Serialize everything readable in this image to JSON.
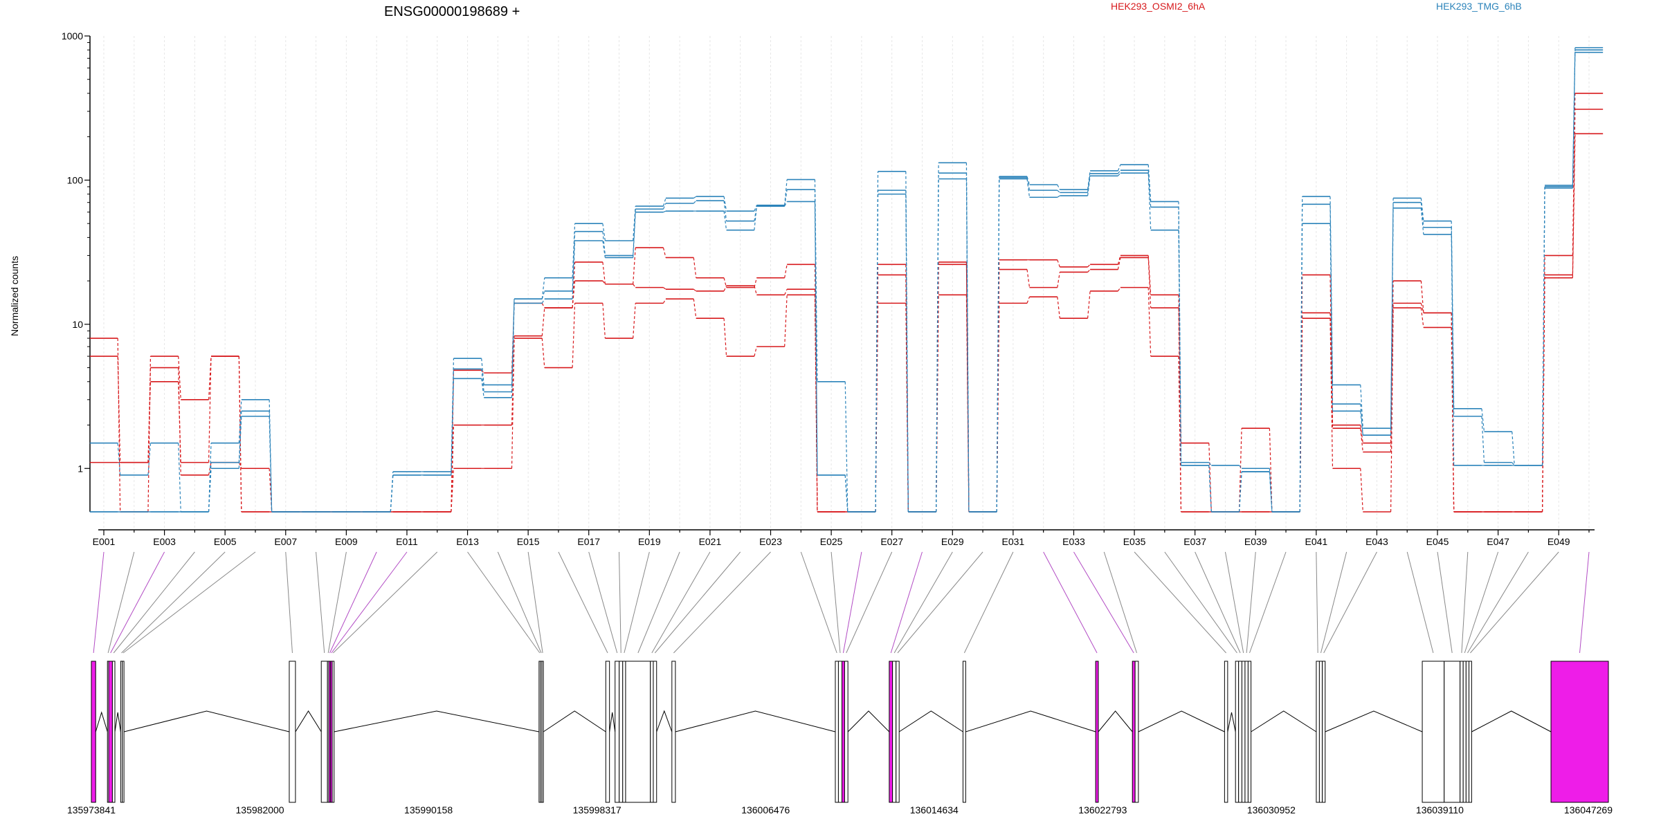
{
  "chart_data": {
    "type": "line",
    "title": "ENSG00000198689 +",
    "ylabel": "Normalized counts",
    "xlabel": "",
    "yscale": "log",
    "ylim": [
      0.5,
      1000
    ],
    "y_ticks": [
      1,
      10,
      100,
      1000
    ],
    "y_tick_labels": [
      "1",
      "10",
      "100",
      "1000"
    ],
    "grid": "vertical dotted",
    "legend_placement": "top",
    "colors": {
      "red": "#d7191c",
      "blue": "#2b83ba",
      "exon_highlight": "#ee1de8"
    },
    "legend": [
      {
        "label": "HEK293_OSMI2_6hA",
        "color": "#d7191c"
      },
      {
        "label": "HEK293_TMG_6hB",
        "color": "#2b83ba"
      }
    ],
    "exons": [
      "E001",
      "E002",
      "E003",
      "E004",
      "E005",
      "E006",
      "E007",
      "E008",
      "E009",
      "E010",
      "E011",
      "E012",
      "E013",
      "E014",
      "E015",
      "E016",
      "E017",
      "E018",
      "E019",
      "E020",
      "E021",
      "E022",
      "E023",
      "E024",
      "E025",
      "E026",
      "E027",
      "E028",
      "E029",
      "E030",
      "E031",
      "E032",
      "E033",
      "E034",
      "E035",
      "E036",
      "E037",
      "E038",
      "E039",
      "E040",
      "E041",
      "E042",
      "E043",
      "E044",
      "E045",
      "E046",
      "E047",
      "E048",
      "E049",
      "E050"
    ],
    "exon_tick_labels": [
      "E001",
      "E003",
      "E005",
      "E007",
      "E009",
      "E011",
      "E013",
      "E015",
      "E017",
      "E019",
      "E021",
      "E023",
      "E025",
      "E027",
      "E029",
      "E031",
      "E033",
      "E035",
      "E037",
      "E039",
      "E041",
      "E043",
      "E045",
      "E047",
      "E049"
    ],
    "series": [
      {
        "name": "HEK293_OSMI2_6hA",
        "color": "#d7191c",
        "values": [
          8,
          0.5,
          6,
          3,
          6,
          0.5,
          0.5,
          0.5,
          0.5,
          0.5,
          0.5,
          0.5,
          4.8,
          4.6,
          14,
          13,
          27,
          19,
          34,
          29,
          21,
          18,
          21,
          26,
          0.5,
          0.5,
          26,
          0.5,
          27,
          0.5,
          28,
          28,
          25,
          26,
          30,
          16,
          1.5,
          0.5,
          1.9,
          0.5,
          22,
          2,
          1.5,
          14,
          12,
          0.5,
          0.5,
          0.5,
          30,
          400
        ]
      },
      {
        "name": "HEK293_OSMI2_6hA",
        "color": "#d7191c",
        "values": [
          6,
          1.1,
          5,
          0.9,
          1.1,
          1,
          0.5,
          0.5,
          0.5,
          0.5,
          0.5,
          0.5,
          2,
          2,
          8.3,
          13,
          20,
          19,
          18,
          17.5,
          17,
          18.5,
          16,
          17.5,
          0.5,
          0.5,
          22,
          0.5,
          26,
          0.5,
          24,
          18,
          23,
          24,
          29,
          13,
          0.5,
          0.5,
          0.5,
          0.5,
          12,
          1.9,
          1.3,
          20,
          12,
          0.5,
          0.5,
          0.5,
          22,
          310
        ]
      },
      {
        "name": "HEK293_OSMI2_6hA",
        "color": "#d7191c",
        "values": [
          1.1,
          1.1,
          4,
          1.1,
          6,
          0.5,
          0.5,
          0.5,
          0.5,
          0.5,
          0.5,
          0.5,
          1,
          1,
          8,
          5,
          14,
          8,
          14,
          15,
          11,
          6,
          7,
          16,
          0.5,
          0.5,
          14,
          0.5,
          16,
          0.5,
          14,
          15.5,
          11,
          17,
          18,
          6,
          0.5,
          0.5,
          0.5,
          0.5,
          11,
          1,
          0.5,
          13,
          9.5,
          0.5,
          0.5,
          0.5,
          21,
          210
        ]
      },
      {
        "name": "HEK293_TMG_6hB",
        "color": "#2b83ba",
        "values": [
          1.5,
          0.9,
          1.5,
          0.5,
          1.5,
          3,
          0.5,
          0.5,
          0.5,
          0.5,
          0.95,
          0.95,
          5.8,
          3.8,
          15,
          21,
          50,
          38,
          66,
          75,
          77,
          61,
          67,
          101,
          4,
          0.5,
          115,
          0.5,
          132,
          0.5,
          106,
          93,
          86,
          116,
          128,
          71,
          1.1,
          1.05,
          1,
          0.5,
          77,
          3.8,
          1.9,
          75,
          52,
          2.6,
          1.8,
          1.05,
          92,
          830
        ]
      },
      {
        "name": "HEK293_TMG_6hB",
        "color": "#2b83ba",
        "values": [
          0.5,
          0.5,
          0.5,
          0.5,
          1.1,
          2.5,
          0.5,
          0.5,
          0.5,
          0.5,
          0.9,
          0.9,
          4.9,
          3.4,
          15,
          17,
          44,
          30,
          63,
          69,
          72,
          52,
          66,
          86,
          0.9,
          0.5,
          85,
          0.5,
          112,
          0.5,
          104,
          85,
          82,
          111,
          117,
          65,
          1.05,
          0.5,
          0.95,
          0.5,
          68,
          2.8,
          1.7,
          70,
          47,
          2.3,
          1.1,
          1.05,
          90,
          800
        ]
      },
      {
        "name": "HEK293_TMG_6hB",
        "color": "#2b83ba",
        "values": [
          0.5,
          0.5,
          0.5,
          0.5,
          1,
          2.3,
          0.5,
          0.5,
          0.5,
          0.5,
          0.9,
          0.9,
          4.2,
          3.1,
          14,
          15,
          38,
          29,
          60,
          61,
          61,
          45,
          66,
          71,
          0.9,
          0.5,
          80,
          0.5,
          102,
          0.5,
          102,
          76,
          78,
          107,
          112,
          45,
          1.05,
          0.5,
          0.95,
          0.5,
          50,
          2.5,
          1.7,
          64,
          42,
          1.05,
          1.05,
          1.05,
          88,
          770
        ]
      }
    ],
    "genomic_axis": {
      "ticks": [
        135973841,
        135982000,
        135990158,
        135998317,
        136006476,
        136014634,
        136022793,
        136030952,
        136039110,
        136047269
      ],
      "tick_labels": [
        "135973841",
        "135982000",
        "135990158",
        "135998317",
        "136006476",
        "136014634",
        "136022793",
        "136030952",
        "136039110",
        "136047269"
      ],
      "range": [
        135973841,
        136047269
      ]
    },
    "gene_model": [
      {
        "exon": "E001",
        "start": 135973841,
        "end": 135974050,
        "highlighted": true
      },
      {
        "exon": "E002",
        "start": 135974620,
        "end": 135974680,
        "highlighted": false
      },
      {
        "exon": "E003",
        "start": 135974680,
        "end": 135974860,
        "highlighted": true
      },
      {
        "exon": "E004",
        "start": 135974860,
        "end": 135974980,
        "highlighted": false
      },
      {
        "exon": "E005",
        "start": 135975260,
        "end": 135975340,
        "highlighted": false
      },
      {
        "exon": "E006",
        "start": 135975340,
        "end": 135975420,
        "highlighted": false
      },
      {
        "exon": "E007",
        "start": 135983420,
        "end": 135983720,
        "highlighted": false
      },
      {
        "exon": "E008",
        "start": 135984970,
        "end": 135985270,
        "highlighted": false
      },
      {
        "exon": "E009",
        "start": 135985270,
        "end": 135985340,
        "highlighted": false
      },
      {
        "exon": "E010",
        "start": 135985340,
        "end": 135985420,
        "highlighted": true
      },
      {
        "exon": "E011",
        "start": 135985420,
        "end": 135985500,
        "highlighted": true
      },
      {
        "exon": "E012",
        "start": 135985500,
        "end": 135985590,
        "highlighted": false
      },
      {
        "exon": "E013",
        "start": 135995510,
        "end": 135995580,
        "highlighted": false
      },
      {
        "exon": "E014",
        "start": 135995580,
        "end": 135995650,
        "highlighted": false
      },
      {
        "exon": "E015",
        "start": 135995650,
        "end": 135995720,
        "highlighted": false
      },
      {
        "exon": "E016",
        "start": 135998740,
        "end": 135998920,
        "highlighted": false
      },
      {
        "exon": "E017",
        "start": 135999190,
        "end": 135999390,
        "highlighted": false
      },
      {
        "exon": "E018",
        "start": 135999390,
        "end": 135999560,
        "highlighted": false
      },
      {
        "exon": "E019",
        "start": 135999560,
        "end": 135999700,
        "highlighted": false
      },
      {
        "exon": "E020",
        "start": 135999700,
        "end": 136000900,
        "highlighted": false
      },
      {
        "exon": "E021",
        "start": 136000900,
        "end": 136001040,
        "highlighted": false
      },
      {
        "exon": "E022",
        "start": 136001040,
        "end": 136001200,
        "highlighted": false
      },
      {
        "exon": "E023",
        "start": 136001940,
        "end": 136002110,
        "highlighted": false
      },
      {
        "exon": "E024",
        "start": 136009850,
        "end": 136010000,
        "highlighted": false
      },
      {
        "exon": "E025",
        "start": 136010000,
        "end": 136010170,
        "highlighted": false
      },
      {
        "exon": "E026",
        "start": 136010170,
        "end": 136010300,
        "highlighted": true
      },
      {
        "exon": "E027",
        "start": 136010300,
        "end": 136010460,
        "highlighted": false
      },
      {
        "exon": "E028",
        "start": 136012460,
        "end": 136012620,
        "highlighted": true
      },
      {
        "exon": "E029",
        "start": 136012620,
        "end": 136012790,
        "highlighted": false
      },
      {
        "exon": "E030",
        "start": 136012790,
        "end": 136012940,
        "highlighted": false
      },
      {
        "exon": "E031",
        "start": 136016030,
        "end": 136016160,
        "highlighted": false
      },
      {
        "exon": "E032",
        "start": 136022450,
        "end": 136022580,
        "highlighted": true
      },
      {
        "exon": "E033",
        "start": 136024230,
        "end": 136024360,
        "highlighted": true
      },
      {
        "exon": "E034",
        "start": 136024360,
        "end": 136024520,
        "highlighted": false
      },
      {
        "exon": "E035",
        "start": 136028690,
        "end": 136028840,
        "highlighted": false
      },
      {
        "exon": "E036",
        "start": 136029220,
        "end": 136029370,
        "highlighted": false
      },
      {
        "exon": "E037",
        "start": 136029370,
        "end": 136029530,
        "highlighted": false
      },
      {
        "exon": "E038",
        "start": 136029530,
        "end": 136029680,
        "highlighted": false
      },
      {
        "exon": "E039",
        "start": 136029680,
        "end": 136029830,
        "highlighted": false
      },
      {
        "exon": "E040",
        "start": 136029830,
        "end": 136029970,
        "highlighted": false
      },
      {
        "exon": "E041",
        "start": 136033130,
        "end": 136033280,
        "highlighted": false
      },
      {
        "exon": "E042",
        "start": 136033280,
        "end": 136033420,
        "highlighted": false
      },
      {
        "exon": "E043",
        "start": 136033420,
        "end": 136033560,
        "highlighted": false
      },
      {
        "exon": "E044",
        "start": 136038260,
        "end": 136039320,
        "highlighted": false
      },
      {
        "exon": "E045",
        "start": 136039320,
        "end": 136040090,
        "highlighted": false
      },
      {
        "exon": "E046",
        "start": 136040090,
        "end": 136040240,
        "highlighted": false
      },
      {
        "exon": "E047",
        "start": 136040240,
        "end": 136040380,
        "highlighted": false
      },
      {
        "exon": "E048",
        "start": 136040380,
        "end": 136040520,
        "highlighted": false
      },
      {
        "exon": "E049",
        "start": 136040520,
        "end": 136040650,
        "highlighted": false
      },
      {
        "exon": "E050",
        "start": 136044490,
        "end": 136047269,
        "highlighted": true
      }
    ]
  }
}
